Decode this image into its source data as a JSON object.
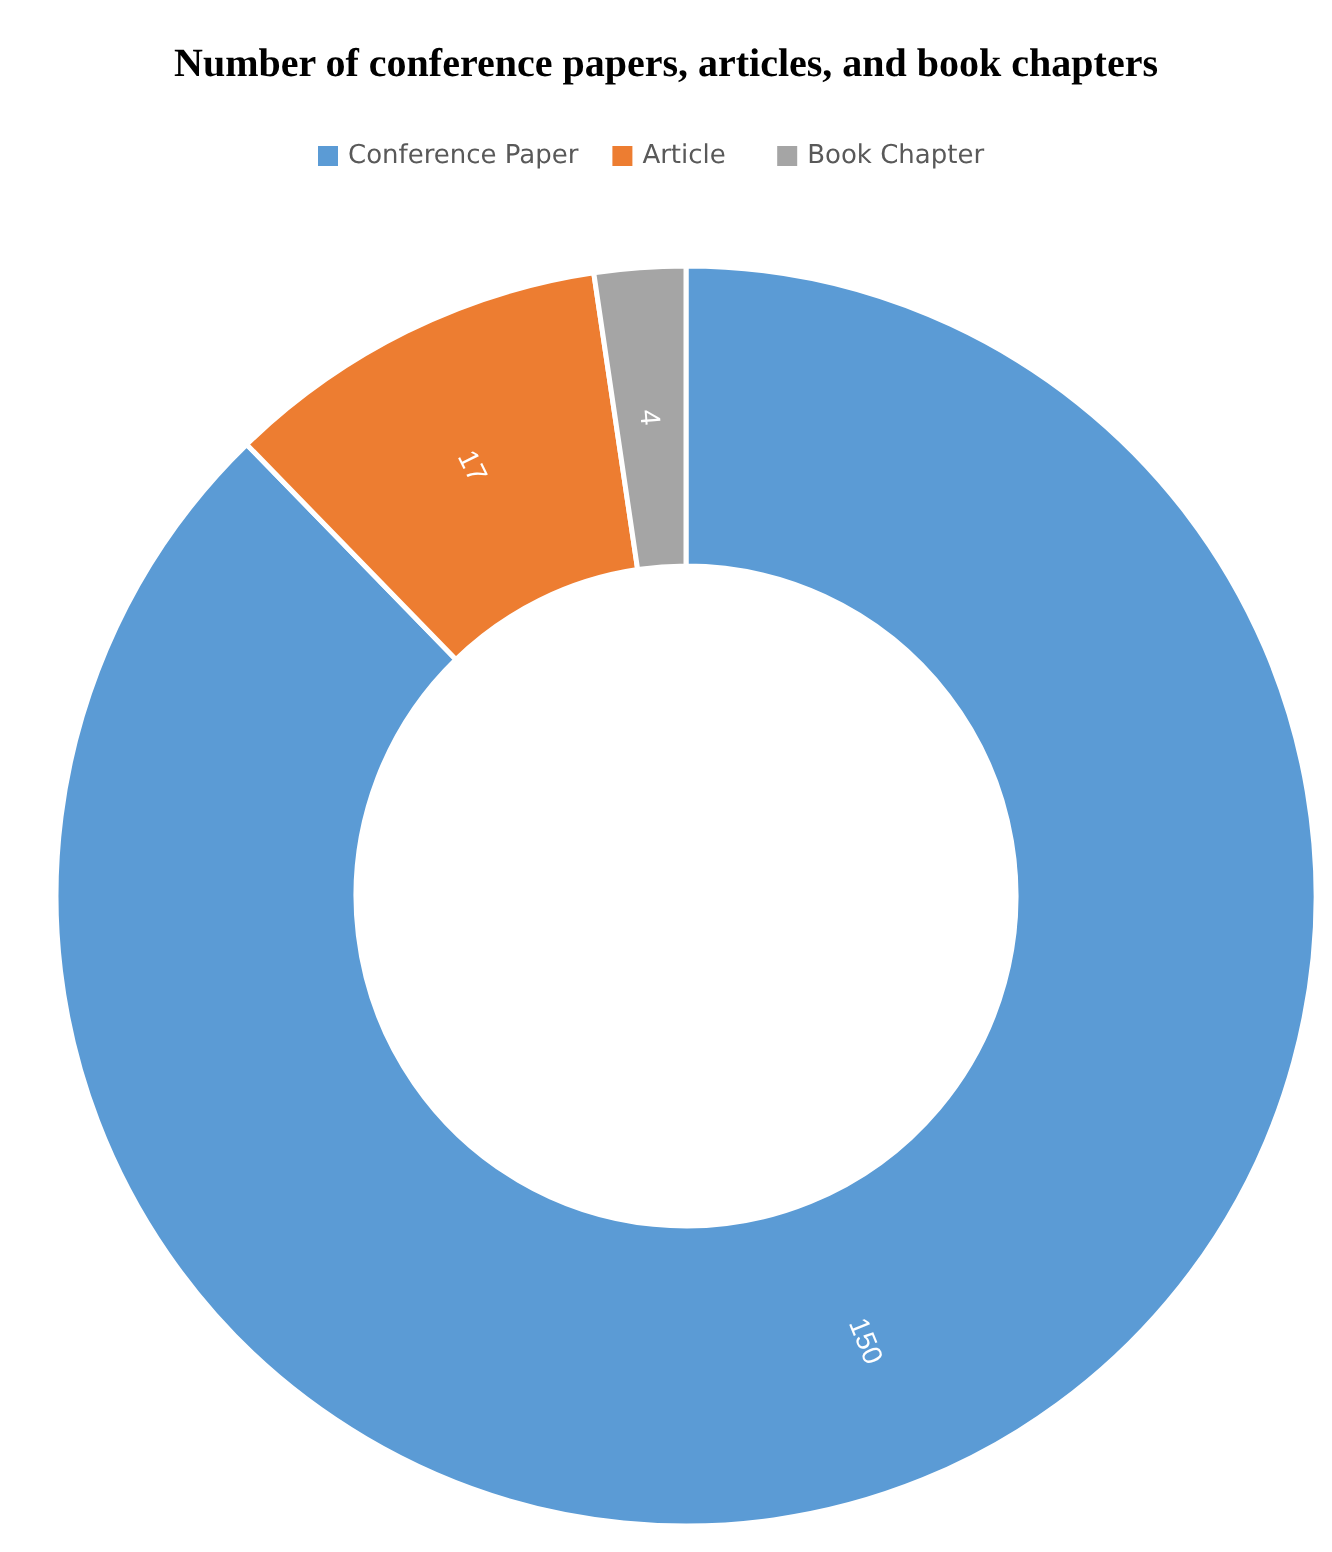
{
  "chart_data": {
    "type": "donut",
    "title": "Number of conference papers, articles, and book chapters",
    "categories": [
      "Conference Paper",
      "Article",
      "Book Chapter"
    ],
    "values": [
      150,
      17,
      4
    ],
    "colors": [
      "#5b9bd5",
      "#ed7d31",
      "#a5a5a5"
    ],
    "data_labels": true,
    "legend": "top"
  }
}
